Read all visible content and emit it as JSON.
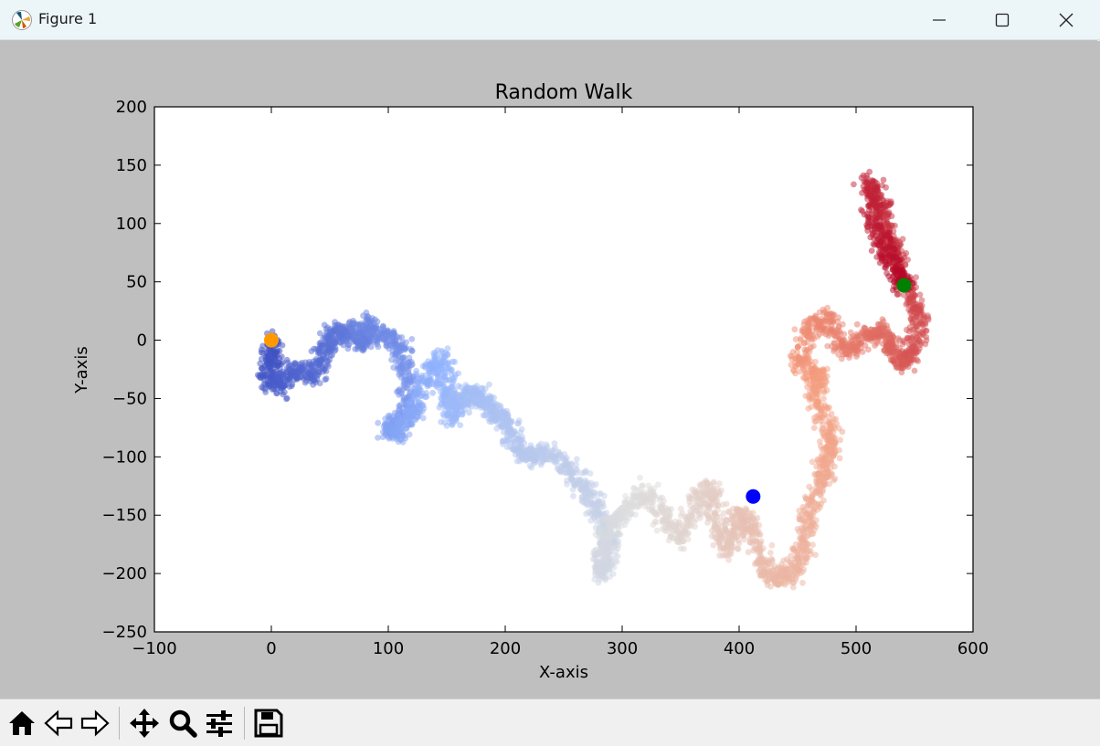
{
  "window": {
    "title": "Figure 1"
  },
  "toolbar": {
    "buttons": [
      {
        "name": "home-button",
        "icon": "home-icon"
      },
      {
        "name": "back-button",
        "icon": "arrow-left-icon"
      },
      {
        "name": "forward-button",
        "icon": "arrow-right-icon"
      },
      {
        "name": "pan-button",
        "icon": "move-icon"
      },
      {
        "name": "zoom-button",
        "icon": "magnifier-icon"
      },
      {
        "name": "subplots-button",
        "icon": "sliders-icon"
      },
      {
        "name": "save-button",
        "icon": "floppy-disk-icon"
      }
    ]
  },
  "chart_data": {
    "type": "scatter",
    "title": "Random Walk",
    "xlabel": "X-axis",
    "ylabel": "Y-axis",
    "xlim": [
      -100,
      600
    ],
    "ylim": [
      -250,
      200
    ],
    "xticks": [
      -100,
      0,
      100,
      200,
      300,
      400,
      500,
      600
    ],
    "yticks": [
      -250,
      -200,
      -150,
      -100,
      -50,
      0,
      50,
      100,
      150,
      200
    ],
    "xtick_labels": [
      "−100",
      "0",
      "100",
      "200",
      "300",
      "400",
      "500",
      "600"
    ],
    "ytick_labels": [
      "−250",
      "−200",
      "−150",
      "−100",
      "−50",
      "0",
      "50",
      "100",
      "150",
      "200"
    ],
    "grid": false,
    "colormap": "coolwarm",
    "point_alpha": 0.5,
    "path_x": [
      0,
      2,
      -5,
      8,
      20,
      38,
      45,
      52,
      65,
      80,
      78,
      95,
      110,
      115,
      120,
      100,
      108,
      122,
      135,
      145,
      150,
      155,
      160,
      170,
      180,
      190,
      200,
      210,
      220,
      235,
      255,
      270,
      280,
      290,
      282,
      285,
      290,
      305,
      320,
      335,
      350,
      365,
      375,
      385,
      390,
      400,
      410,
      420,
      430,
      445,
      455,
      460,
      470,
      475,
      480,
      465,
      470,
      450,
      460,
      475,
      490,
      505,
      520,
      530,
      540,
      548,
      555,
      545,
      535,
      528,
      520,
      510,
      515,
      525,
      535,
      540
    ],
    "path_y": [
      0,
      -15,
      -30,
      -40,
      -25,
      -30,
      -10,
      5,
      8,
      -5,
      15,
      5,
      -5,
      -30,
      -60,
      -75,
      -80,
      -55,
      -30,
      -15,
      -45,
      -65,
      -55,
      -45,
      -50,
      -60,
      -70,
      -90,
      -100,
      -95,
      -110,
      -130,
      -150,
      -170,
      -200,
      -185,
      -160,
      -145,
      -130,
      -150,
      -170,
      -140,
      -125,
      -160,
      -180,
      -150,
      -160,
      -190,
      -205,
      -200,
      -180,
      -150,
      -120,
      -100,
      -80,
      -50,
      -30,
      -20,
      10,
      20,
      -10,
      0,
      10,
      -5,
      -20,
      -10,
      20,
      40,
      70,
      95,
      120,
      135,
      100,
      80,
      60,
      47
    ],
    "spread": 9,
    "n_points": 5000,
    "start_point": {
      "x": 0,
      "y": 0,
      "color": "#ff9900"
    },
    "end_point": {
      "x": 541,
      "y": 47,
      "color": "#008000"
    },
    "marked_point": {
      "x": 412,
      "y": -134,
      "color": "#0000ff"
    }
  }
}
